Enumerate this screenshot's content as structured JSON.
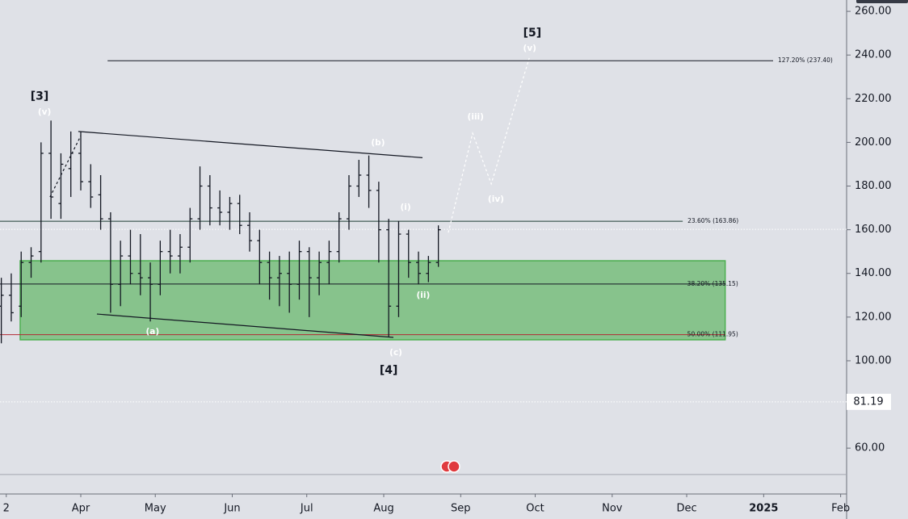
{
  "chart_data": {
    "type": "ohlc",
    "color": "#131722",
    "xlim": [
      -1.53,
      339.4
    ],
    "xticks": [
      {
        "value": 1,
        "label": "2"
      },
      {
        "value": 31,
        "label": "Apr"
      },
      {
        "value": 61,
        "label": "May"
      },
      {
        "value": 92,
        "label": "Jun"
      },
      {
        "value": 122,
        "label": "Jul"
      },
      {
        "value": 153,
        "label": "Aug"
      },
      {
        "value": 184,
        "label": "Sep"
      },
      {
        "value": 214,
        "label": "Oct"
      },
      {
        "value": 245,
        "label": "Nov"
      },
      {
        "value": 275,
        "label": "Dec"
      },
      {
        "value": 306,
        "label": "2025"
      },
      {
        "value": 337,
        "label": "Feb"
      }
    ],
    "ylim": [
      39,
      265.2
    ],
    "yticks": [
      {
        "value": 60,
        "label": "60.00"
      },
      {
        "value": 100,
        "label": "100.00"
      },
      {
        "value": 120,
        "label": "120.00"
      },
      {
        "value": 140,
        "label": "140.00"
      },
      {
        "value": 160,
        "label": "160.00"
      },
      {
        "value": 180,
        "label": "180.00"
      },
      {
        "value": 200,
        "label": "200.00"
      },
      {
        "value": 220,
        "label": "220.00"
      },
      {
        "value": 240,
        "label": "240.00"
      },
      {
        "value": 260,
        "label": "260.00"
      }
    ],
    "bars": {
      "x": [
        -1,
        3,
        7,
        11,
        15,
        19,
        23,
        27,
        31,
        35,
        39,
        43,
        47,
        51,
        55,
        59,
        63,
        67,
        71,
        75,
        79,
        83,
        87,
        91,
        95,
        99,
        103,
        107,
        111,
        115,
        119,
        123,
        127,
        131,
        135,
        139,
        143,
        147,
        151,
        155,
        159,
        163,
        167,
        171,
        175
      ],
      "open": [
        125,
        130,
        125,
        145,
        150,
        195,
        172,
        188,
        195,
        182,
        176,
        165,
        135,
        148,
        140,
        138,
        135,
        150,
        148,
        152,
        165,
        180,
        170,
        168,
        172,
        162,
        155,
        145,
        138,
        140,
        135,
        150,
        138,
        145,
        150,
        165,
        180,
        185,
        178,
        160,
        125,
        158,
        145,
        140,
        145
      ],
      "high": [
        138,
        140,
        150,
        152,
        200,
        210,
        195,
        205,
        205,
        190,
        185,
        168,
        155,
        160,
        158,
        145,
        155,
        160,
        158,
        170,
        189,
        185,
        178,
        175,
        176,
        168,
        160,
        150,
        148,
        150,
        155,
        152,
        150,
        155,
        168,
        185,
        192,
        194,
        182,
        165,
        164,
        160,
        150,
        148,
        162
      ],
      "low": [
        108,
        118,
        120,
        138,
        145,
        165,
        165,
        175,
        178,
        170,
        160,
        122,
        125,
        135,
        130,
        118,
        130,
        140,
        140,
        145,
        160,
        162,
        162,
        160,
        158,
        150,
        135,
        128,
        125,
        122,
        128,
        120,
        130,
        135,
        145,
        160,
        175,
        170,
        145,
        111,
        120,
        138,
        135,
        136,
        143
      ],
      "close": [
        130,
        122,
        145,
        148,
        195,
        175,
        190,
        195,
        182,
        175,
        165,
        135,
        148,
        140,
        138,
        135,
        150,
        148,
        152,
        165,
        180,
        170,
        168,
        172,
        162,
        155,
        145,
        138,
        140,
        135,
        150,
        138,
        145,
        150,
        165,
        180,
        185,
        178,
        160,
        125,
        158,
        145,
        140,
        145,
        160
      ]
    },
    "zone": {
      "x": [
        6.6,
        290.5
      ],
      "y": [
        109.6,
        145.8
      ],
      "color": "#4caf50"
    },
    "fib_levels": [
      {
        "label": "127.20% (237.40)",
        "value": 237.4,
        "x": [
          41.8,
          309.8
        ],
        "color": "#131722"
      },
      {
        "label": "23.60% (163.86)",
        "value": 163.86,
        "x": [
          -1.53,
          273.4
        ],
        "color": "#1e3d33"
      },
      {
        "label": "38.20% (135.15)",
        "value": 135.15,
        "x": [
          -1.53,
          290.5
        ],
        "color": "#131722"
      },
      {
        "label": "50.00% (111.95)",
        "value": 111.95,
        "x": [
          -1.53,
          290.5
        ],
        "color": "#b22833"
      }
    ],
    "trendlines": [
      {
        "x": [
          30,
          168.6
        ],
        "y": [
          205,
          193
        ],
        "color": "#131722",
        "dashed": false
      },
      {
        "x": [
          37.5,
          156.9
        ],
        "y": [
          121.4,
          110.7
        ],
        "color": "#131722",
        "dashed": false
      },
      {
        "x": [
          18.6,
          31
        ],
        "y": [
          175,
          203
        ],
        "color": "#131722",
        "dashed": true
      },
      {
        "x": [
          179,
          188.8,
          196.3,
          211.6
        ],
        "y": [
          158.7,
          204.2,
          181,
          238.6
        ],
        "color": "#ffffff",
        "dashed": true
      }
    ],
    "horizontal_lines": [
      {
        "value": 160.2,
        "dashed": true
      },
      {
        "value": 47.9,
        "dashed": false
      }
    ],
    "marker_price": 81.19,
    "annotations": [
      {
        "text": "[3]",
        "x": 14.4,
        "y": 221,
        "major": true
      },
      {
        "text": "(v)",
        "x": 16.4,
        "y": 213.8,
        "major": false
      },
      {
        "text": "(a)",
        "x": 59.9,
        "y": 113.3,
        "major": false
      },
      {
        "text": "(b)",
        "x": 150.7,
        "y": 199.8,
        "major": false
      },
      {
        "text": "(c)",
        "x": 157.9,
        "y": 103.7,
        "major": false
      },
      {
        "text": "[4]",
        "x": 155,
        "y": 95.6,
        "major": true
      },
      {
        "text": "(i)",
        "x": 161.8,
        "y": 170.3,
        "major": false
      },
      {
        "text": "(ii)",
        "x": 168.9,
        "y": 129.9,
        "major": false
      },
      {
        "text": "(iii)",
        "x": 190,
        "y": 211.6,
        "major": false
      },
      {
        "text": "(iv)",
        "x": 198.2,
        "y": 173.9,
        "major": false
      },
      {
        "text": "[5]",
        "x": 212.8,
        "y": 250,
        "major": true
      },
      {
        "text": "(v)",
        "x": 211.8,
        "y": 243,
        "major": false
      }
    ]
  }
}
